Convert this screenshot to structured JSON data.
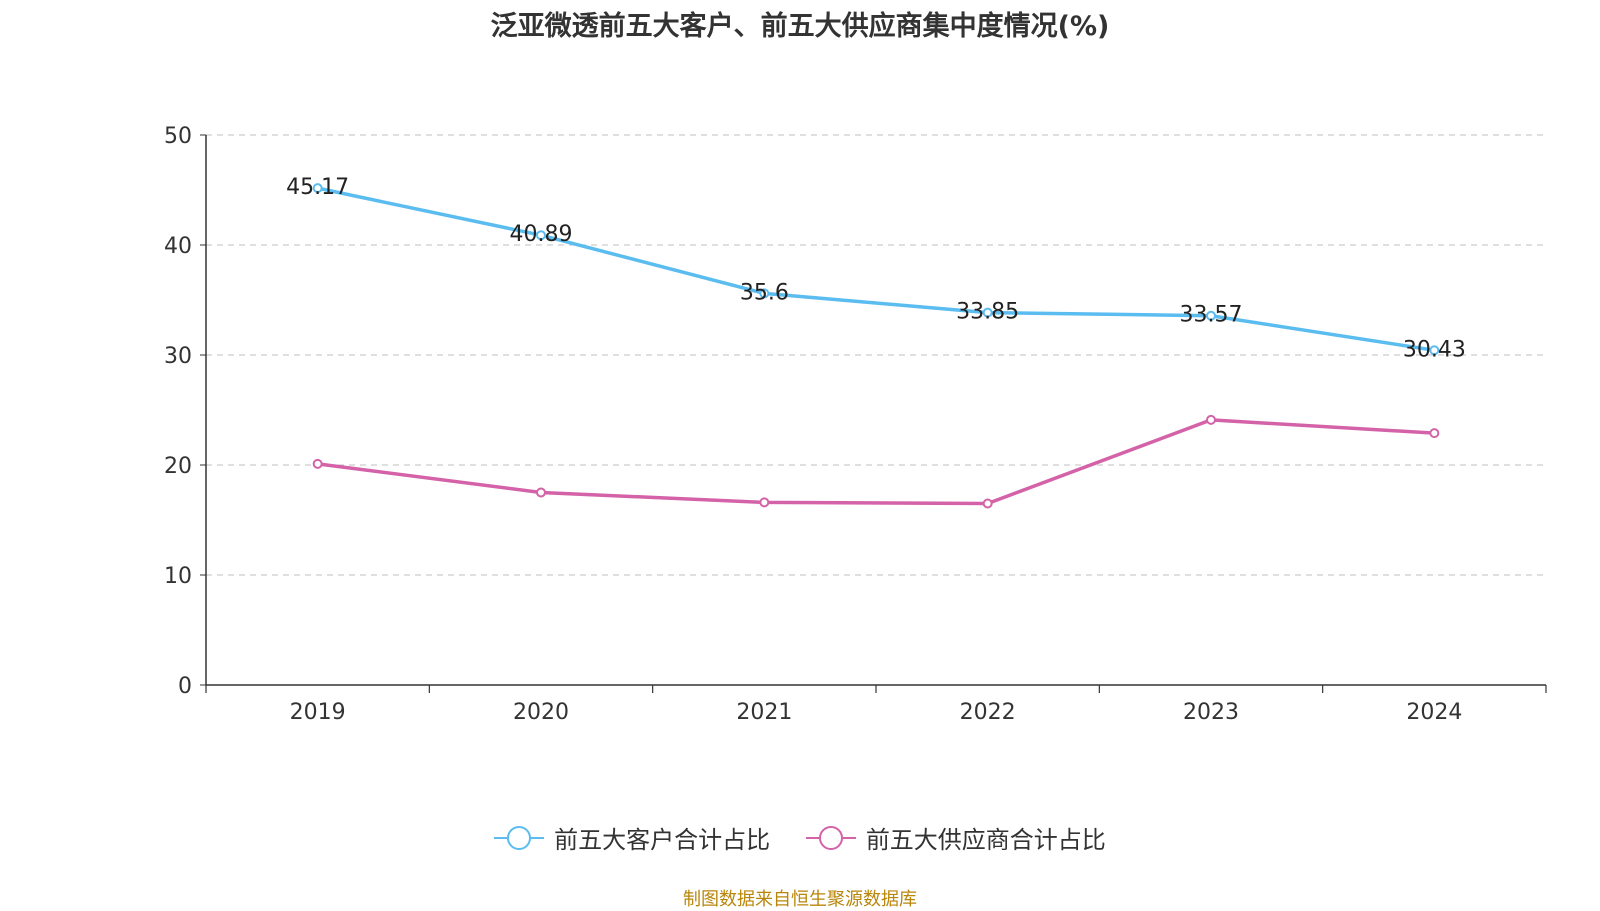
{
  "chart_data": {
    "type": "line",
    "title": "泛亚微透前五大客户、前五大供应商集中度情况(%)",
    "categories": [
      "2019",
      "2020",
      "2021",
      "2022",
      "2023",
      "2024"
    ],
    "ylim": [
      0,
      50
    ],
    "yticks": [
      0,
      10,
      20,
      30,
      40,
      50
    ],
    "grid": true,
    "legend_position": "bottom",
    "series": [
      {
        "name": "前五大客户合计占比",
        "color": "#5bbcf0",
        "values": [
          45.17,
          40.89,
          35.6,
          33.85,
          33.57,
          30.43
        ],
        "labels": [
          "45.17",
          "40.89",
          "35.6",
          "33.85",
          "33.57",
          "30.43"
        ],
        "show_labels": true
      },
      {
        "name": "前五大供应商合计占比",
        "color": "#d462a8",
        "values": [
          20.1,
          17.5,
          16.6,
          16.5,
          24.1,
          22.9
        ],
        "show_labels": false
      }
    ]
  },
  "source": "制图数据来自恒生聚源数据库"
}
